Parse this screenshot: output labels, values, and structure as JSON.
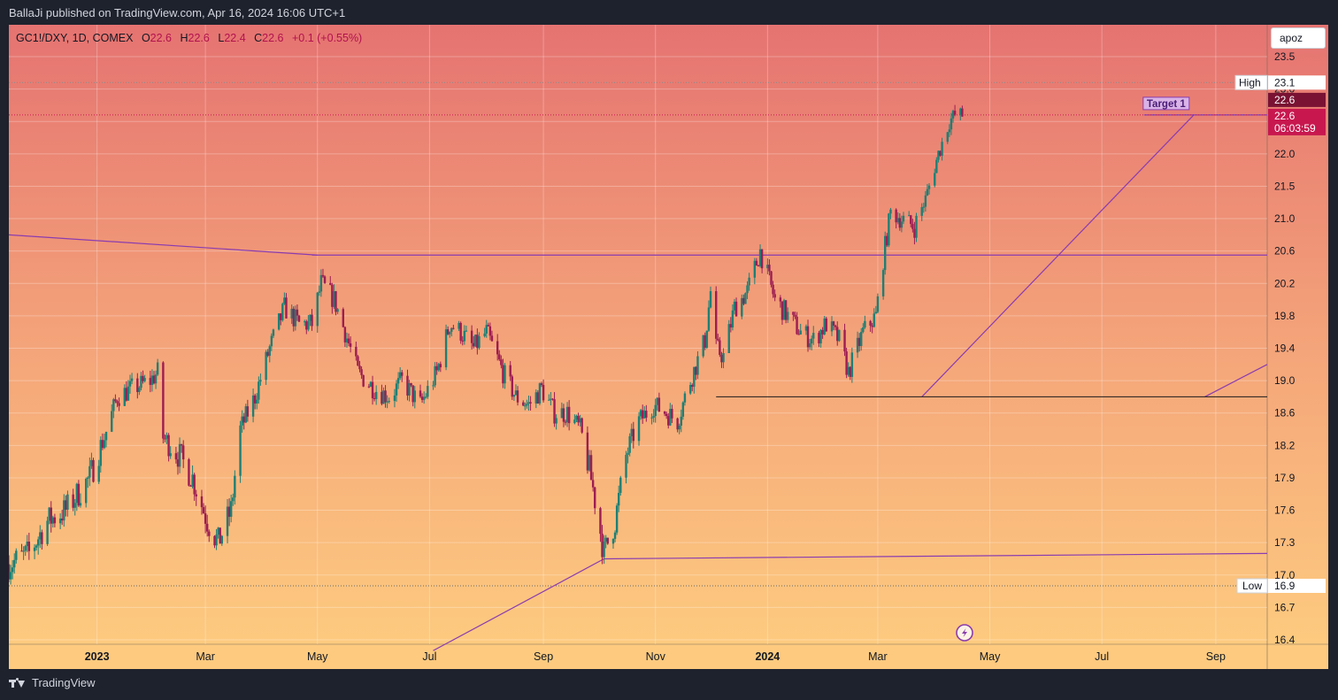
{
  "header": {
    "published_text": "BallaJi published on TradingView.com, Apr 16, 2024 16:06 UTC+1"
  },
  "legend": {
    "symbol": "GC1!/DXY, 1D, COMEX",
    "open_label": "O",
    "open": "22.6",
    "high_label": "H",
    "high": "22.6",
    "low_label": "L",
    "low": "22.4",
    "close_label": "C",
    "close": "22.6",
    "change": "+0.1 (+0.55%)"
  },
  "symbol_search": {
    "text": "apoz"
  },
  "footer": {
    "brand": "TradingView"
  },
  "colors": {
    "up": "#1e7f74",
    "down": "#9c1d52",
    "bg_top": "#e57371",
    "bg_bottom": "#fdca7f",
    "drawing": "#8a3cb0",
    "price_tag": "#c8174f",
    "high_tag": "#7a1233"
  },
  "chart_data": {
    "type": "candlestick",
    "ylim": [
      16.3,
      23.8
    ],
    "y_ticks": [
      16.4,
      16.7,
      17.0,
      17.3,
      17.6,
      17.9,
      18.2,
      18.6,
      19.0,
      19.4,
      19.8,
      20.2,
      20.6,
      21.0,
      21.5,
      22.0,
      22.5,
      23.0,
      23.5
    ],
    "x_ticks": [
      {
        "label": "2023",
        "date": "2023-01-01",
        "bold": true
      },
      {
        "label": "Mar",
        "date": "2023-03-01"
      },
      {
        "label": "May",
        "date": "2023-05-01"
      },
      {
        "label": "Jul",
        "date": "2023-07-01"
      },
      {
        "label": "Sep",
        "date": "2023-09-01"
      },
      {
        "label": "Nov",
        "date": "2023-11-01"
      },
      {
        "label": "2024",
        "date": "2024-01-01",
        "bold": true
      },
      {
        "label": "Mar",
        "date": "2024-03-01"
      },
      {
        "label": "May",
        "date": "2024-05-01"
      },
      {
        "label": "Jul",
        "date": "2024-07-01"
      },
      {
        "label": "Sep",
        "date": "2024-09-01"
      }
    ],
    "x_range": [
      "2022-11-14",
      "2024-09-29"
    ],
    "close_path": [
      [
        "2022-11-14",
        17.1
      ],
      [
        "2022-11-25",
        17.2
      ],
      [
        "2022-12-05",
        17.5
      ],
      [
        "2022-12-15",
        17.6
      ],
      [
        "2022-12-28",
        17.9
      ],
      [
        "2023-01-05",
        18.3
      ],
      [
        "2023-01-12",
        18.8
      ],
      [
        "2023-01-20",
        18.9
      ],
      [
        "2023-01-30",
        19.0
      ],
      [
        "2023-02-03",
        19.1
      ],
      [
        "2023-02-06",
        18.3
      ],
      [
        "2023-02-15",
        18.1
      ],
      [
        "2023-02-22",
        17.9
      ],
      [
        "2023-03-02",
        17.5
      ],
      [
        "2023-03-08",
        17.3
      ],
      [
        "2023-03-15",
        17.6
      ],
      [
        "2023-03-20",
        18.4
      ],
      [
        "2023-03-28",
        18.8
      ],
      [
        "2023-04-05",
        19.4
      ],
      [
        "2023-04-13",
        19.9
      ],
      [
        "2023-04-21",
        19.7
      ],
      [
        "2023-04-28",
        19.7
      ],
      [
        "2023-05-03",
        20.2
      ],
      [
        "2023-05-10",
        20.0
      ],
      [
        "2023-05-16",
        19.6
      ],
      [
        "2023-05-23",
        19.1
      ],
      [
        "2023-06-01",
        18.9
      ],
      [
        "2023-06-09",
        18.8
      ],
      [
        "2023-06-16",
        19.0
      ],
      [
        "2023-06-26",
        18.7
      ],
      [
        "2023-07-05",
        19.1
      ],
      [
        "2023-07-12",
        19.7
      ],
      [
        "2023-07-18",
        19.6
      ],
      [
        "2023-07-25",
        19.4
      ],
      [
        "2023-08-01",
        19.6
      ],
      [
        "2023-08-10",
        19.1
      ],
      [
        "2023-08-17",
        18.8
      ],
      [
        "2023-08-24",
        18.7
      ],
      [
        "2023-08-31",
        18.9
      ],
      [
        "2023-09-07",
        18.6
      ],
      [
        "2023-09-14",
        18.6
      ],
      [
        "2023-09-21",
        18.4
      ],
      [
        "2023-09-28",
        17.8
      ],
      [
        "2023-10-04",
        17.2
      ],
      [
        "2023-10-10",
        17.5
      ],
      [
        "2023-10-16",
        18.1
      ],
      [
        "2023-10-23",
        18.5
      ],
      [
        "2023-10-31",
        18.7
      ],
      [
        "2023-11-07",
        18.6
      ],
      [
        "2023-11-13",
        18.5
      ],
      [
        "2023-11-20",
        19.0
      ],
      [
        "2023-11-28",
        19.5
      ],
      [
        "2023-12-01",
        20.1
      ],
      [
        "2023-12-04",
        19.4
      ],
      [
        "2023-12-08",
        19.3
      ],
      [
        "2023-12-14",
        19.9
      ],
      [
        "2023-12-21",
        20.1
      ],
      [
        "2023-12-28",
        20.6
      ],
      [
        "2024-01-05",
        20.0
      ],
      [
        "2024-01-12",
        19.8
      ],
      [
        "2024-01-19",
        19.6
      ],
      [
        "2024-01-26",
        19.5
      ],
      [
        "2024-02-02",
        19.7
      ],
      [
        "2024-02-09",
        19.5
      ],
      [
        "2024-02-14",
        19.1
      ],
      [
        "2024-02-22",
        19.6
      ],
      [
        "2024-02-29",
        19.8
      ],
      [
        "2024-03-04",
        20.5
      ],
      [
        "2024-03-08",
        21.1
      ],
      [
        "2024-03-14",
        21.0
      ],
      [
        "2024-03-21",
        20.9
      ],
      [
        "2024-03-27",
        21.3
      ],
      [
        "2024-04-03",
        22.0
      ],
      [
        "2024-04-09",
        22.5
      ],
      [
        "2024-04-12",
        22.6
      ],
      [
        "2024-04-16",
        22.6
      ]
    ],
    "session_high": 23.1,
    "session_low": 16.9,
    "last_price": 22.6,
    "countdown": "06:03:59",
    "high_label": "High",
    "low_label": "Low",
    "high_value": "23.1",
    "low_value": "16.9",
    "high_tag_value": "22.6",
    "last_value": "22.6",
    "target_label": "Target 1",
    "trend_lines": [
      {
        "from": [
          "2022-11-14",
          20.8
        ],
        "to": [
          "2023-05-01",
          20.55
        ]
      },
      {
        "from": [
          "2023-04-28",
          20.55
        ],
        "to": [
          "2024-09-29",
          20.55
        ]
      },
      {
        "from": [
          "2023-10-04",
          17.15
        ],
        "to": [
          "2024-09-29",
          17.2
        ]
      },
      {
        "from": [
          "2023-07-03",
          16.3
        ],
        "to": [
          "2023-10-04",
          17.15
        ]
      },
      {
        "from": [
          "2024-03-25",
          18.8
        ],
        "to": [
          "2024-08-20",
          22.6
        ]
      },
      {
        "from": [
          "2024-08-26",
          18.8
        ],
        "to": [
          "2024-09-29",
          19.2
        ]
      },
      {
        "from": [
          "2024-07-24",
          22.6
        ],
        "to": [
          "2024-09-29",
          22.6
        ]
      }
    ],
    "horizontal_line": {
      "from": "2023-12-04",
      "to": "2024-09-29",
      "y": 18.8
    },
    "target": {
      "date": "2024-08-05",
      "y": 22.6
    }
  }
}
